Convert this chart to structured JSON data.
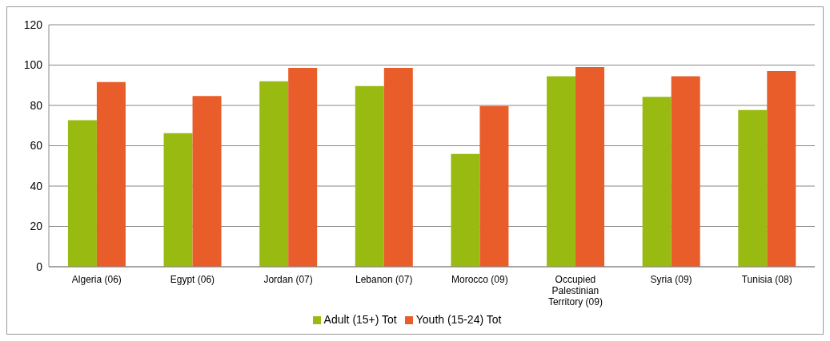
{
  "chart_data": {
    "type": "bar",
    "categories": [
      "Algeria (06)",
      "Egypt (06)",
      "Jordan (07)",
      "Lebanon (07)",
      "Morocco (09)",
      "Occupied Palestinian Territory (09)",
      "Syria (09)",
      "Tunisia (08)"
    ],
    "series": [
      {
        "name": "Adult (15+) Tot",
        "color": "#99bb11",
        "values": [
          72.7,
          66.2,
          92,
          89.6,
          55.9,
          94.5,
          84.3,
          77.7
        ]
      },
      {
        "name": "Youth (15-24) Tot",
        "color": "#e85d2a",
        "values": [
          91.6,
          84.7,
          98.6,
          98.6,
          79.7,
          99,
          94.5,
          97
        ]
      }
    ],
    "ylim": [
      0,
      120
    ],
    "yticks": [
      0,
      20,
      40,
      60,
      80,
      100,
      120
    ],
    "grid": "y",
    "legend": "bottom"
  }
}
